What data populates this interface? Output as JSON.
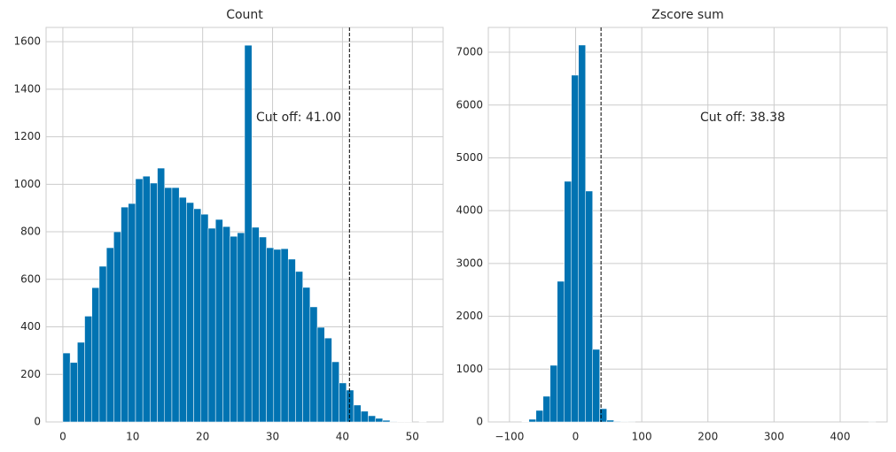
{
  "chart_data": [
    {
      "type": "histogram",
      "title": "Count",
      "bins": [
        0,
        1.04,
        2.08,
        3.12,
        4.16,
        5.2,
        6.24,
        7.28,
        8.32,
        9.36,
        10.4,
        11.44,
        12.48,
        13.52,
        14.56,
        15.6,
        16.64,
        17.68,
        18.72,
        19.76,
        20.8,
        21.84,
        22.88,
        23.92,
        24.96,
        26,
        27.04,
        28.08,
        29.12,
        30.16,
        31.2,
        32.24,
        33.28,
        34.32,
        35.36,
        36.4,
        37.44,
        38.48,
        39.52,
        40.56,
        41.6,
        42.64,
        43.68,
        44.72,
        45.76,
        46.8,
        47.84,
        48.88,
        49.92,
        50.96,
        52
      ],
      "values": [
        290,
        250,
        335,
        445,
        565,
        655,
        733,
        800,
        904,
        919,
        1023,
        1034,
        1005,
        1068,
        986,
        986,
        945,
        923,
        897,
        874,
        815,
        852,
        822,
        781,
        796,
        1585,
        819,
        778,
        733,
        726,
        729,
        685,
        633,
        566,
        484,
        398,
        353,
        253,
        164,
        134,
        71,
        45,
        26,
        15,
        7,
        2,
        1,
        1,
        0,
        1
      ],
      "color": "#0173b2",
      "xlim": [
        -2.4,
        54.4
      ],
      "ylim": [
        0,
        1660
      ],
      "xticks": [
        0,
        10,
        20,
        30,
        40,
        50
      ],
      "yticks": [
        0,
        200,
        400,
        600,
        800,
        1000,
        1200,
        1400,
        1600
      ],
      "grid": true,
      "cutoff": 41,
      "annotation": "Cut off: 41.00"
    },
    {
      "type": "histogram",
      "title": "Zscore sum",
      "bins": [
        -81.3,
        -70.6,
        -59.9,
        -49.2,
        -38.5,
        -27.8,
        -17.1,
        -6.4,
        4.3,
        15,
        25.7,
        36.4,
        47.1,
        57.8,
        68.5,
        79.2,
        89.9,
        100.6,
        111.3,
        122,
        132.7,
        143.4,
        154.1,
        164.8,
        175.5,
        186.2,
        196.9,
        207.6,
        218.3,
        229,
        239.7,
        250.4,
        261.1,
        271.8,
        282.5,
        293.2,
        303.9,
        314.6,
        325.3,
        336,
        346.7,
        357.4,
        368.1,
        378.8,
        389.5,
        400.2,
        410.9,
        421.6,
        432.3,
        443,
        453.7
      ],
      "values": [
        5,
        50,
        218,
        486,
        1072,
        2663,
        4556,
        6566,
        7136,
        4372,
        1374,
        251,
        34,
        10,
        3,
        1,
        0,
        0,
        0,
        0,
        0,
        0,
        0,
        0,
        0,
        0,
        0,
        0,
        0,
        0,
        0,
        0,
        0,
        0,
        0,
        0,
        0,
        0,
        0,
        0,
        0,
        0,
        0,
        0,
        0,
        0,
        0,
        0,
        0,
        1
      ],
      "color": "#0173b2",
      "xlim": [
        -132,
        471
      ],
      "ylim": [
        0,
        7470
      ],
      "xticks": [
        {
          "value": -100,
          "label": "−100"
        },
        0,
        100,
        200,
        300,
        400
      ],
      "yticks": [
        0,
        1000,
        2000,
        3000,
        4000,
        5000,
        6000,
        7000
      ],
      "grid": true,
      "cutoff": 38.38,
      "annotation": "Cut off: 38.38"
    }
  ]
}
